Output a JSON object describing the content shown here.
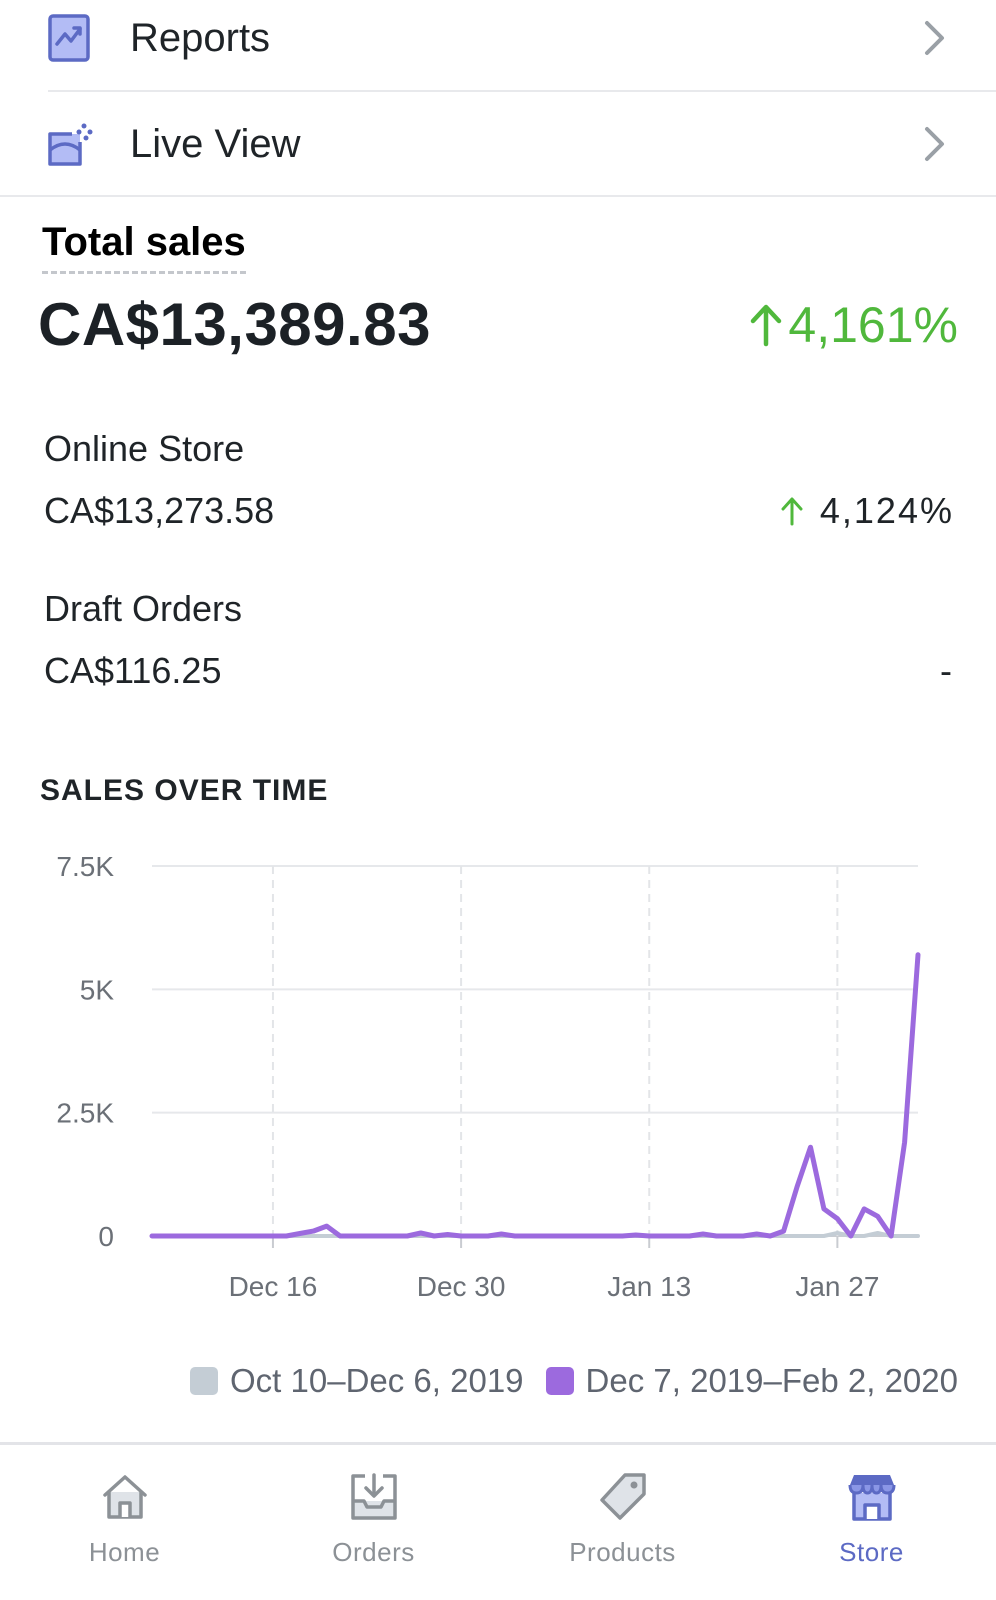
{
  "menu": {
    "reports_label": "Reports",
    "live_view_label": "Live View"
  },
  "total_sales": {
    "title": "Total sales",
    "amount": "CA$13,389.83",
    "change": "4,161%"
  },
  "channels": [
    {
      "name": "Online Store",
      "amount": "CA$13,273.58",
      "change": "4,124%"
    },
    {
      "name": "Draft Orders",
      "amount": "CA$116.25",
      "change": "-"
    }
  ],
  "chart_section_title": "SALES OVER TIME",
  "colors": {
    "accent": "#5c6ac4",
    "positive": "#50b83c",
    "current_series": "#9c6ade",
    "previous_series": "#c4cdd5"
  },
  "chart_data": {
    "type": "line",
    "x_tick_labels": [
      "Dec 16",
      "Dec 30",
      "Jan 13",
      "Jan 27"
    ],
    "y_tick_labels": [
      "7.5K",
      "5K",
      "2.5K",
      "0"
    ],
    "ylim": [
      0,
      7500
    ],
    "grid": true,
    "legend_position": "bottom",
    "x": [
      "Dec 7",
      "Dec 8",
      "Dec 9",
      "Dec 10",
      "Dec 11",
      "Dec 12",
      "Dec 13",
      "Dec 14",
      "Dec 15",
      "Dec 16",
      "Dec 17",
      "Dec 18",
      "Dec 19",
      "Dec 20",
      "Dec 21",
      "Dec 22",
      "Dec 23",
      "Dec 24",
      "Dec 25",
      "Dec 26",
      "Dec 27",
      "Dec 28",
      "Dec 29",
      "Dec 30",
      "Dec 31",
      "Jan 1",
      "Jan 2",
      "Jan 3",
      "Jan 4",
      "Jan 5",
      "Jan 6",
      "Jan 7",
      "Jan 8",
      "Jan 9",
      "Jan 10",
      "Jan 11",
      "Jan 12",
      "Jan 13",
      "Jan 14",
      "Jan 15",
      "Jan 16",
      "Jan 17",
      "Jan 18",
      "Jan 19",
      "Jan 20",
      "Jan 21",
      "Jan 22",
      "Jan 23",
      "Jan 24",
      "Jan 25",
      "Jan 26",
      "Jan 27",
      "Jan 28",
      "Jan 29",
      "Jan 30",
      "Jan 31",
      "Feb 1",
      "Feb 2"
    ],
    "series": [
      {
        "name": "Oct 10–Dec 6, 2019",
        "values": [
          0,
          0,
          0,
          0,
          0,
          0,
          0,
          0,
          0,
          0,
          0,
          0,
          0,
          0,
          0,
          0,
          0,
          0,
          0,
          0,
          0,
          0,
          0,
          0,
          0,
          0,
          0,
          0,
          0,
          0,
          0,
          0,
          0,
          0,
          0,
          0,
          0,
          0,
          0,
          0,
          0,
          0,
          0,
          0,
          0,
          0,
          0,
          0,
          0,
          0,
          0,
          60,
          0,
          0,
          60,
          0,
          0,
          0
        ]
      },
      {
        "name": "Dec 7, 2019–Feb 2, 2020",
        "values": [
          0,
          0,
          0,
          0,
          0,
          0,
          0,
          0,
          0,
          0,
          0,
          50,
          100,
          200,
          0,
          0,
          0,
          0,
          0,
          0,
          60,
          0,
          30,
          0,
          0,
          0,
          40,
          0,
          0,
          0,
          0,
          0,
          0,
          0,
          0,
          0,
          20,
          0,
          0,
          0,
          0,
          40,
          0,
          0,
          0,
          40,
          0,
          100,
          1000,
          1800,
          550,
          350,
          0,
          550,
          400,
          0,
          1900,
          5700
        ]
      }
    ]
  },
  "nav": [
    {
      "label": "Home",
      "icon": "home-icon"
    },
    {
      "label": "Orders",
      "icon": "orders-icon"
    },
    {
      "label": "Products",
      "icon": "products-icon"
    },
    {
      "label": "Store",
      "icon": "store-icon"
    }
  ]
}
